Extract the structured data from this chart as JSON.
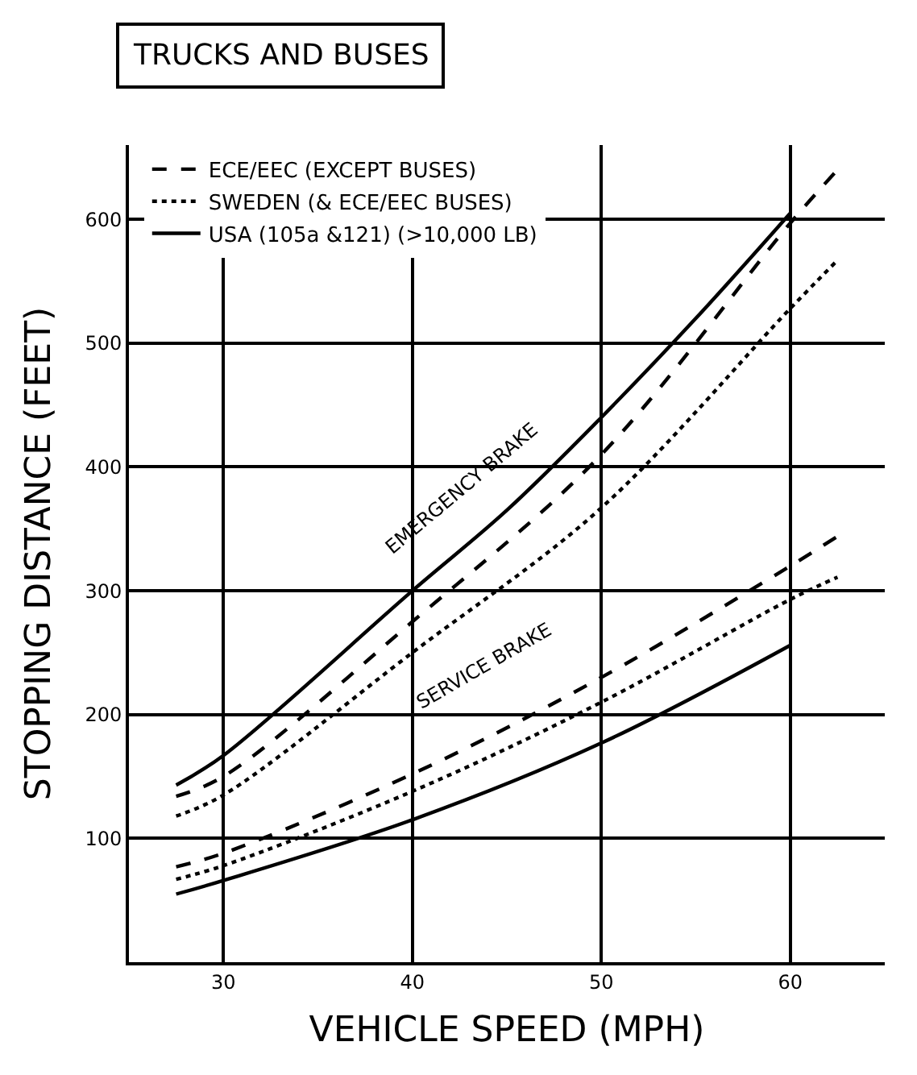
{
  "chart_data": {
    "type": "line",
    "title": "TRUCKS AND BUSES",
    "xlabel": "VEHICLE SPEED (MPH)",
    "ylabel": "STOPPING DISTANCE (FEET)",
    "xlim": [
      25,
      65
    ],
    "xticks": [
      30,
      40,
      50,
      60
    ],
    "ylim": [
      0,
      660
    ],
    "yticks": [
      100,
      200,
      300,
      400,
      500,
      600
    ],
    "grid": true,
    "legend": "top left",
    "marker": "none",
    "series": [
      {
        "name": "ECE/EEC (EXCEPT BUSES)",
        "color": "#000000",
        "line_style": "dashed",
        "x": [
          27.5,
          30,
          40,
          50,
          60,
          62.5
        ],
        "values": [
          134,
          150,
          275,
          410,
          597,
          640
        ]
      },
      {
        "name": "SWEDEN (& ECE/EEC BUSES)",
        "color": "#000000",
        "line_style": "dotted",
        "x": [
          27.5,
          30,
          40,
          50,
          60,
          62.5
        ],
        "values": [
          118,
          135,
          250,
          367,
          528,
          567
        ]
      },
      {
        "name": "USA (105a &121) (>10,000 LB)",
        "color": "#000000",
        "line_style": "solid",
        "x": [
          27.5,
          30,
          40,
          45,
          50,
          55,
          60
        ],
        "values": [
          143,
          167,
          300,
          365,
          440,
          520,
          605
        ]
      },
      {
        "color": "#000000",
        "line_style": "dashed",
        "x": [
          27.5,
          30,
          40,
          50,
          60,
          62.5
        ],
        "values": [
          77,
          88,
          152,
          230,
          320,
          344
        ]
      },
      {
        "color": "#000000",
        "line_style": "dotted",
        "x": [
          27.5,
          30,
          40,
          50,
          60,
          62.5
        ],
        "values": [
          67,
          78,
          138,
          210,
          293,
          311
        ]
      },
      {
        "color": "#000000",
        "line_style": "solid",
        "x": [
          27.5,
          30,
          40,
          50,
          60
        ],
        "values": [
          55,
          66,
          115,
          177,
          256
        ]
      }
    ],
    "annotations": [
      "EMERGENCY BRAKE",
      "SERVICE BRAKE"
    ]
  }
}
